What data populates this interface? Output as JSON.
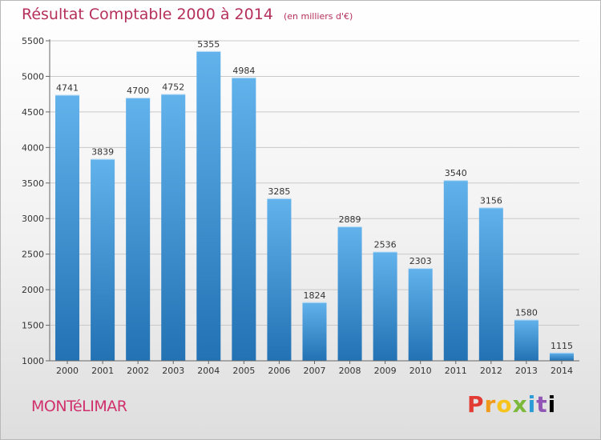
{
  "header": {
    "title": "Résultat Comptable 2000 à 2014",
    "subtitle": "(en milliers d'€)"
  },
  "footer": {
    "city": "MONTéLIMAR",
    "logo_letters": [
      "P",
      "r",
      "o",
      "x",
      "i",
      "t",
      "i"
    ]
  },
  "colors": {
    "title": "#b5305b",
    "bar_top": "#62b2ec",
    "bar_bottom": "#2272b4",
    "city": "#d0306c"
  },
  "chart_data": {
    "type": "bar",
    "title": "Résultat Comptable 2000 à 2014",
    "subtitle": "(en milliers d'€)",
    "xlabel": "",
    "ylabel": "",
    "categories": [
      "2000",
      "2001",
      "2002",
      "2003",
      "2004",
      "2005",
      "2006",
      "2007",
      "2008",
      "2009",
      "2010",
      "2011",
      "2012",
      "2013",
      "2014"
    ],
    "values": [
      4741,
      3839,
      4700,
      4752,
      5355,
      4984,
      3285,
      1824,
      2889,
      2536,
      2303,
      3540,
      3156,
      1580,
      1115
    ],
    "ylim": [
      1000,
      5500
    ],
    "yticks": [
      1000,
      1500,
      2000,
      2500,
      3000,
      3500,
      4000,
      4500,
      5000,
      5500
    ],
    "grid": true,
    "legend": "none"
  }
}
